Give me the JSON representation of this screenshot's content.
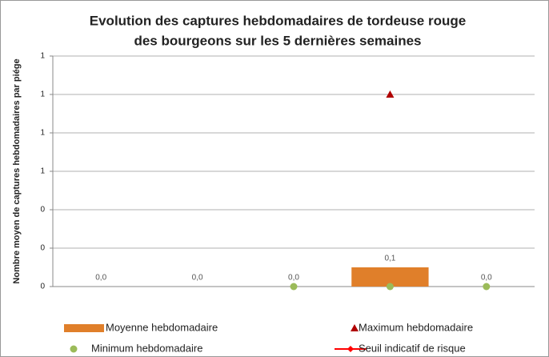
{
  "chart_data": {
    "type": "bar",
    "title": [
      "Evolution des captures hebdomadaires de  tordeuse rouge",
      "des bourgeons sur les 5 dernières semaines"
    ],
    "y_label": "Nombre moyen de captures hebdomadaires par piége",
    "categories": [
      null,
      null,
      null,
      null,
      null
    ],
    "series": [
      {
        "name": "Moyenne hebdomadaire",
        "type": "bar",
        "color": "#e07f2a",
        "values": [
          0,
          0,
          0,
          0.1,
          0
        ],
        "value_labels": [
          "0,0",
          "0,0",
          "0,0",
          "0,1",
          "0,0"
        ]
      },
      {
        "name": "Maximum hebdomadaire",
        "type": "triangle",
        "color": "#b00000",
        "values": [
          null,
          null,
          null,
          1,
          null
        ]
      },
      {
        "name": "Minimum hebdomadaire",
        "type": "circle",
        "color": "#9bbb59",
        "values": [
          null,
          null,
          0,
          0,
          0
        ]
      },
      {
        "name": "Seuil indicatif de risque",
        "type": "line",
        "color": "#ff0000",
        "values": [
          null,
          null,
          null,
          null,
          null
        ]
      }
    ],
    "ylim": [
      0,
      1.2
    ],
    "yticks": [
      0,
      {
        "value": 0.2,
        "label": "0"
      },
      {
        "value": 0.4,
        "label": "0"
      },
      {
        "value": 0.6,
        "label": "1"
      },
      {
        "value": 0.8,
        "label": "1"
      },
      1,
      {
        "value": 1.2,
        "label": "1"
      }
    ],
    "grid": true
  }
}
